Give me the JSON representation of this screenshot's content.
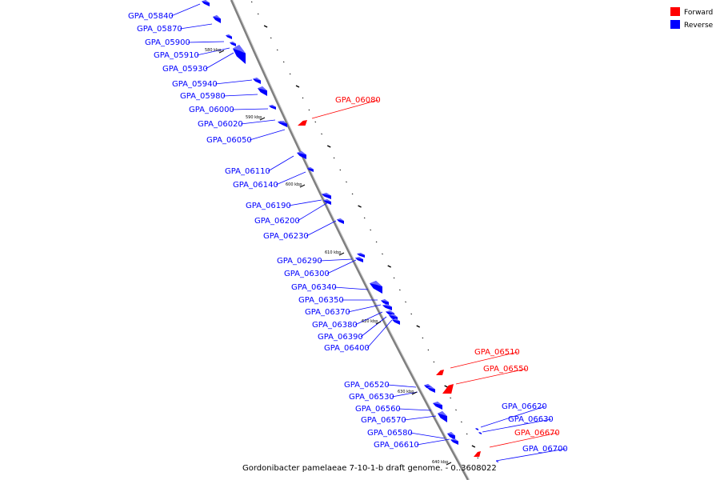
{
  "legend": {
    "forward_label": "Forward",
    "reverse_label": "Reverse",
    "forward_color": "#ff0000",
    "reverse_color": "#0000ff"
  },
  "caption": "Gordonibacter pamelaeae 7-10-1-b draft genome. - 0..3608022",
  "ticks": [
    "580 kbp",
    "590 kbp",
    "600 kbp",
    "610 kbp",
    "620 kbp",
    "630 kbp",
    "640 kbp"
  ],
  "genes": [
    {
      "name": "GPA_05840",
      "strand": "reverse"
    },
    {
      "name": "GPA_05870",
      "strand": "reverse"
    },
    {
      "name": "GPA_05900",
      "strand": "reverse"
    },
    {
      "name": "GPA_05910",
      "strand": "reverse"
    },
    {
      "name": "GPA_05930",
      "strand": "reverse"
    },
    {
      "name": "GPA_05940",
      "strand": "reverse"
    },
    {
      "name": "GPA_05980",
      "strand": "reverse"
    },
    {
      "name": "GPA_06000",
      "strand": "reverse"
    },
    {
      "name": "GPA_06020",
      "strand": "reverse"
    },
    {
      "name": "GPA_06050",
      "strand": "reverse"
    },
    {
      "name": "GPA_06080",
      "strand": "forward"
    },
    {
      "name": "GPA_06110",
      "strand": "reverse"
    },
    {
      "name": "GPA_06140",
      "strand": "reverse"
    },
    {
      "name": "GPA_06190",
      "strand": "reverse"
    },
    {
      "name": "GPA_06200",
      "strand": "reverse"
    },
    {
      "name": "GPA_06230",
      "strand": "reverse"
    },
    {
      "name": "GPA_06290",
      "strand": "reverse"
    },
    {
      "name": "GPA_06300",
      "strand": "reverse"
    },
    {
      "name": "GPA_06340",
      "strand": "reverse"
    },
    {
      "name": "GPA_06350",
      "strand": "reverse"
    },
    {
      "name": "GPA_06370",
      "strand": "reverse"
    },
    {
      "name": "GPA_06380",
      "strand": "reverse"
    },
    {
      "name": "GPA_06390",
      "strand": "reverse"
    },
    {
      "name": "GPA_06400",
      "strand": "reverse"
    },
    {
      "name": "GPA_06510",
      "strand": "forward"
    },
    {
      "name": "GPA_06550",
      "strand": "forward"
    },
    {
      "name": "GPA_06520",
      "strand": "reverse"
    },
    {
      "name": "GPA_06530",
      "strand": "reverse"
    },
    {
      "name": "GPA_06560",
      "strand": "reverse"
    },
    {
      "name": "GPA_06570",
      "strand": "reverse"
    },
    {
      "name": "GPA_06580",
      "strand": "reverse"
    },
    {
      "name": "GPA_06610",
      "strand": "reverse"
    },
    {
      "name": "GPA_06620",
      "strand": "reverse"
    },
    {
      "name": "GPA_06630",
      "strand": "reverse"
    },
    {
      "name": "GPA_06670",
      "strand": "forward"
    },
    {
      "name": "GPA_06700",
      "strand": "reverse"
    }
  ]
}
